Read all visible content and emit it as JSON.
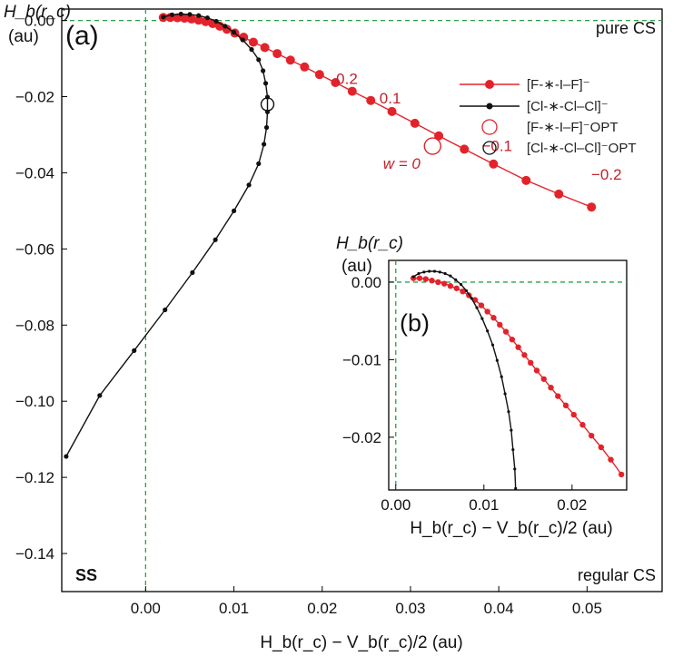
{
  "chart_data": [
    {
      "type": "line",
      "panel_label": "(a)",
      "xlabel": "H_b(r_c) − V_b(r_c)/2 (au)",
      "ylabel_line1": "H_b(r_c)",
      "ylabel_line2": "(au)",
      "xlim": [
        -0.0095,
        0.0585
      ],
      "ylim": [
        -0.15,
        0.003
      ],
      "x_ticks": [
        "0.00",
        "0.01",
        "0.02",
        "0.03",
        "0.04",
        "0.05"
      ],
      "y_ticks": [
        "0.00",
        "-0.02",
        "-0.04",
        "-0.06",
        "-0.08",
        "-0.10",
        "-0.12",
        "-0.14"
      ],
      "grid": false,
      "reference_lines": {
        "x": 0,
        "y": 0,
        "style": "green dashed"
      },
      "region_labels": {
        "top_right": "pure CS",
        "bottom_left": "SS",
        "bottom_right": "regular CS"
      },
      "legend": {
        "position": "top-right",
        "entries": [
          "[F-∗-I–F]⁻",
          "[Cl-∗-Cl–Cl]⁻",
          "[F-∗-I–F]⁻OPT",
          "[Cl-∗-Cl–Cl]⁻OPT"
        ]
      },
      "series": [
        {
          "name": "[F-∗-I–F]⁻",
          "color": "#e3232b",
          "points": [
            [
              0.002,
              0.0008
            ],
            [
              0.0028,
              0.0008
            ],
            [
              0.0036,
              0.0007
            ],
            [
              0.0044,
              0.0006
            ],
            [
              0.0052,
              0.0004
            ],
            [
              0.006,
              0.0001
            ],
            [
              0.0068,
              -0.0003
            ],
            [
              0.0076,
              -0.0008
            ],
            [
              0.0084,
              -0.0015
            ],
            [
              0.0092,
              -0.0023
            ],
            [
              0.0101,
              -0.0033
            ],
            [
              0.0111,
              -0.0044
            ],
            [
              0.0122,
              -0.0057
            ],
            [
              0.0135,
              -0.0071
            ],
            [
              0.0149,
              -0.0087
            ],
            [
              0.0164,
              -0.0104
            ],
            [
              0.018,
              -0.0122
            ],
            [
              0.0197,
              -0.0142
            ],
            [
              0.0215,
              -0.0163
            ],
            [
              0.0234,
              -0.0186
            ],
            [
              0.0255,
              -0.021
            ],
            [
              0.0279,
              -0.0239
            ],
            [
              0.0305,
              -0.027
            ],
            [
              0.0332,
              -0.0303
            ],
            [
              0.0361,
              -0.0338
            ],
            [
              0.0394,
              -0.0377
            ],
            [
              0.0431,
              -0.042
            ],
            [
              0.0468,
              -0.0456
            ],
            [
              0.0505,
              -0.049
            ]
          ]
        },
        {
          "name": "[Cl-∗-Cl–Cl]⁻",
          "color": "#111111",
          "points": [
            [
              0.002,
              0.0009
            ],
            [
              0.003,
              0.0015
            ],
            [
              0.004,
              0.0017
            ],
            [
              0.005,
              0.0016
            ],
            [
              0.006,
              0.0013
            ],
            [
              0.007,
              0.0007
            ],
            [
              0.008,
              -0.0002
            ],
            [
              0.009,
              -0.0015
            ],
            [
              0.01,
              -0.0031
            ],
            [
              0.011,
              -0.0051
            ],
            [
              0.012,
              -0.0076
            ],
            [
              0.0128,
              -0.0103
            ],
            [
              0.0133,
              -0.0132
            ],
            [
              0.0136,
              -0.0165
            ],
            [
              0.0138,
              -0.0201
            ],
            [
              0.0138,
              -0.024
            ],
            [
              0.0137,
              -0.0281
            ],
            [
              0.0134,
              -0.0325
            ],
            [
              0.0128,
              -0.0376
            ],
            [
              0.0117,
              -0.0432
            ],
            [
              0.01,
              -0.05
            ],
            [
              0.0079,
              -0.0576
            ],
            [
              0.0053,
              -0.0662
            ],
            [
              0.0022,
              -0.076
            ],
            [
              -0.0013,
              -0.0867
            ],
            [
              -0.0052,
              -0.0985
            ],
            [
              -0.009,
              -0.1145
            ]
          ]
        }
      ],
      "opt_markers": [
        {
          "name": "[F-∗-I–F]⁻OPT",
          "x": 0.0325,
          "y": -0.033,
          "color": "#e3232b"
        },
        {
          "name": "[Cl-∗-Cl–Cl]⁻OPT",
          "x": 0.0138,
          "y": -0.022,
          "color": "#111111"
        }
      ],
      "annotations": [
        {
          "text": "0.2",
          "x": 0.0228,
          "y": -0.0167
        },
        {
          "text": "0.1",
          "x": 0.0277,
          "y": -0.0218
        },
        {
          "text": "w = 0",
          "x": 0.029,
          "y": -0.039
        },
        {
          "text": "−0.1",
          "x": 0.0398,
          "y": -0.0343
        },
        {
          "text": "−0.2",
          "x": 0.0522,
          "y": -0.0418
        }
      ]
    },
    {
      "type": "line",
      "panel_label": "(b)",
      "xlabel": "H_b(r_c) − V_b(r_c)/2 (au)",
      "ylabel_line1": "H_b(r_c)",
      "ylabel_line2": "(au)",
      "xlim": [
        -0.0008,
        0.0262
      ],
      "ylim": [
        -0.0268,
        0.0028
      ],
      "x_ticks": [
        "0.00",
        "0.01",
        "0.02"
      ],
      "y_ticks": [
        "0.00",
        "-0.01",
        "-0.02"
      ],
      "grid": false,
      "reference_lines": {
        "x": 0,
        "y": 0,
        "style": "green dashed"
      },
      "series": [
        {
          "name": "[F-∗-I–F]⁻",
          "color": "#e3232b",
          "points": [
            [
              0.002,
              0.0005
            ],
            [
              0.0027,
              0.0005
            ],
            [
              0.0034,
              0.0004
            ],
            [
              0.0041,
              0.0002
            ],
            [
              0.0048,
              0.0
            ],
            [
              0.0055,
              -0.0002
            ],
            [
              0.0062,
              -0.0005
            ],
            [
              0.0069,
              -0.0008
            ],
            [
              0.0076,
              -0.0012
            ],
            [
              0.0083,
              -0.0017
            ],
            [
              0.009,
              -0.0023
            ],
            [
              0.0097,
              -0.003
            ],
            [
              0.0104,
              -0.0038
            ],
            [
              0.0111,
              -0.0046
            ],
            [
              0.0118,
              -0.0055
            ],
            [
              0.0125,
              -0.0064
            ],
            [
              0.0132,
              -0.0074
            ],
            [
              0.0139,
              -0.0084
            ],
            [
              0.0146,
              -0.0094
            ],
            [
              0.0153,
              -0.0104
            ],
            [
              0.016,
              -0.0114
            ],
            [
              0.0168,
              -0.0125
            ],
            [
              0.0176,
              -0.0136
            ],
            [
              0.0184,
              -0.0147
            ],
            [
              0.0193,
              -0.0159
            ],
            [
              0.0202,
              -0.0171
            ],
            [
              0.0212,
              -0.0184
            ],
            [
              0.0222,
              -0.0198
            ],
            [
              0.0233,
              -0.0213
            ],
            [
              0.0244,
              -0.0229
            ],
            [
              0.0256,
              -0.0248
            ]
          ]
        },
        {
          "name": "[Cl-∗-Cl–Cl]⁻",
          "color": "#111111",
          "points": [
            [
              0.002,
              0.0007
            ],
            [
              0.0026,
              0.0011
            ],
            [
              0.0032,
              0.0013
            ],
            [
              0.0038,
              0.0014
            ],
            [
              0.0044,
              0.0014
            ],
            [
              0.005,
              0.0013
            ],
            [
              0.0056,
              0.0011
            ],
            [
              0.0062,
              0.0008
            ],
            [
              0.0068,
              0.0003
            ],
            [
              0.0074,
              -0.0003
            ],
            [
              0.008,
              -0.0011
            ],
            [
              0.0086,
              -0.0021
            ],
            [
              0.0092,
              -0.0033
            ],
            [
              0.0098,
              -0.0047
            ],
            [
              0.0104,
              -0.0063
            ],
            [
              0.011,
              -0.0081
            ],
            [
              0.0115,
              -0.0101
            ],
            [
              0.012,
              -0.0122
            ],
            [
              0.0124,
              -0.0144
            ],
            [
              0.0128,
              -0.0167
            ],
            [
              0.0131,
              -0.0191
            ],
            [
              0.0133,
              -0.0216
            ],
            [
              0.0135,
              -0.0241
            ],
            [
              0.0136,
              -0.0266
            ]
          ]
        }
      ]
    }
  ]
}
